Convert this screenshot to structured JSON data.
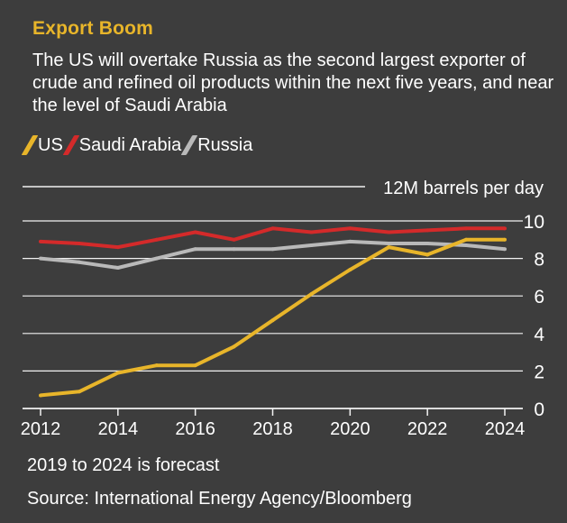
{
  "header": {
    "title": "Export Boom",
    "subtitle": "The US will overtake Russia as the second largest exporter of crude and refined oil products within the next five years, and near the level of Saudi Arabia"
  },
  "colors": {
    "background": "#3d3d3d",
    "title": "#e8b52a",
    "us": "#e8b52a",
    "saudi": "#d42a2a",
    "russia": "#b9b9b9",
    "grid": "#f2f2f2"
  },
  "footer": {
    "note": "2019 to 2024 is forecast",
    "source": "Source: International Energy Agency/Bloomberg"
  },
  "chart_data": {
    "type": "line",
    "title": "Export Boom",
    "ylabel": "12M barrels per day",
    "unit_label": "12M barrels per day",
    "xlim": [
      2012,
      2024
    ],
    "ylim": [
      0,
      10
    ],
    "x_ticks": [
      2012,
      2014,
      2016,
      2018,
      2020,
      2022,
      2024
    ],
    "y_ticks": [
      0,
      2,
      4,
      6,
      8,
      10
    ],
    "forecast_start": 2019,
    "grid": true,
    "legend_position": "top-left",
    "x": [
      2012,
      2013,
      2014,
      2015,
      2016,
      2017,
      2018,
      2019,
      2020,
      2021,
      2022,
      2023,
      2024
    ],
    "series": [
      {
        "name": "US",
        "color": "#e8b52a",
        "values": [
          0.7,
          0.9,
          1.9,
          2.3,
          2.3,
          3.3,
          4.7,
          6.1,
          7.4,
          8.6,
          8.2,
          9.0,
          9.0
        ]
      },
      {
        "name": "Saudi Arabia",
        "color": "#d42a2a",
        "values": [
          8.9,
          8.8,
          8.6,
          9.0,
          9.4,
          9.0,
          9.6,
          9.4,
          9.6,
          9.4,
          9.5,
          9.6,
          9.6
        ]
      },
      {
        "name": "Russia",
        "color": "#b9b9b9",
        "values": [
          8.0,
          7.8,
          7.5,
          8.0,
          8.5,
          8.5,
          8.5,
          8.7,
          8.9,
          8.8,
          8.8,
          8.7,
          8.5
        ]
      }
    ]
  }
}
